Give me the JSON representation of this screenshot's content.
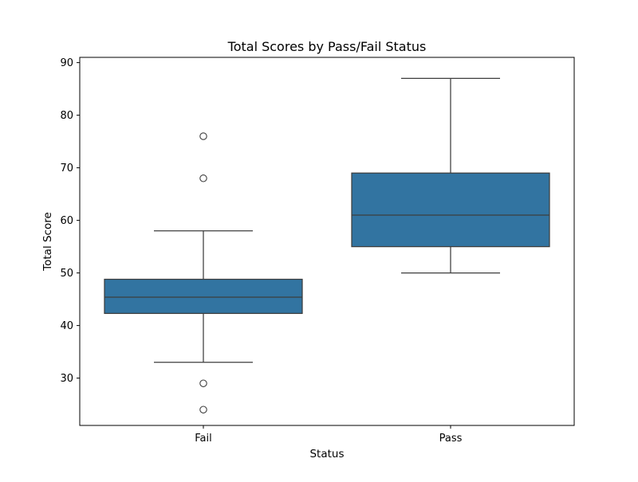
{
  "chart_data": {
    "type": "box",
    "title": "Total Scores by Pass/Fail Status",
    "xlabel": "Status",
    "ylabel": "Total Score",
    "ylim": [
      21,
      91
    ],
    "yticks": [
      30,
      40,
      50,
      60,
      70,
      80,
      90
    ],
    "categories": [
      "Fail",
      "Pass"
    ],
    "grid": false,
    "legend": "none",
    "colors": {
      "box_fill": "#3274a1",
      "line": "#3d3d3d",
      "axis": "#000000"
    },
    "boxes": [
      {
        "category": "Fail",
        "whisker_low": 33,
        "q1": 42.3,
        "median": 45.4,
        "q3": 48.8,
        "whisker_high": 58,
        "outliers": [
          76,
          68,
          29,
          24
        ]
      },
      {
        "category": "Pass",
        "whisker_low": 50,
        "q1": 55,
        "median": 61,
        "q3": 69,
        "whisker_high": 87,
        "outliers": []
      }
    ]
  }
}
